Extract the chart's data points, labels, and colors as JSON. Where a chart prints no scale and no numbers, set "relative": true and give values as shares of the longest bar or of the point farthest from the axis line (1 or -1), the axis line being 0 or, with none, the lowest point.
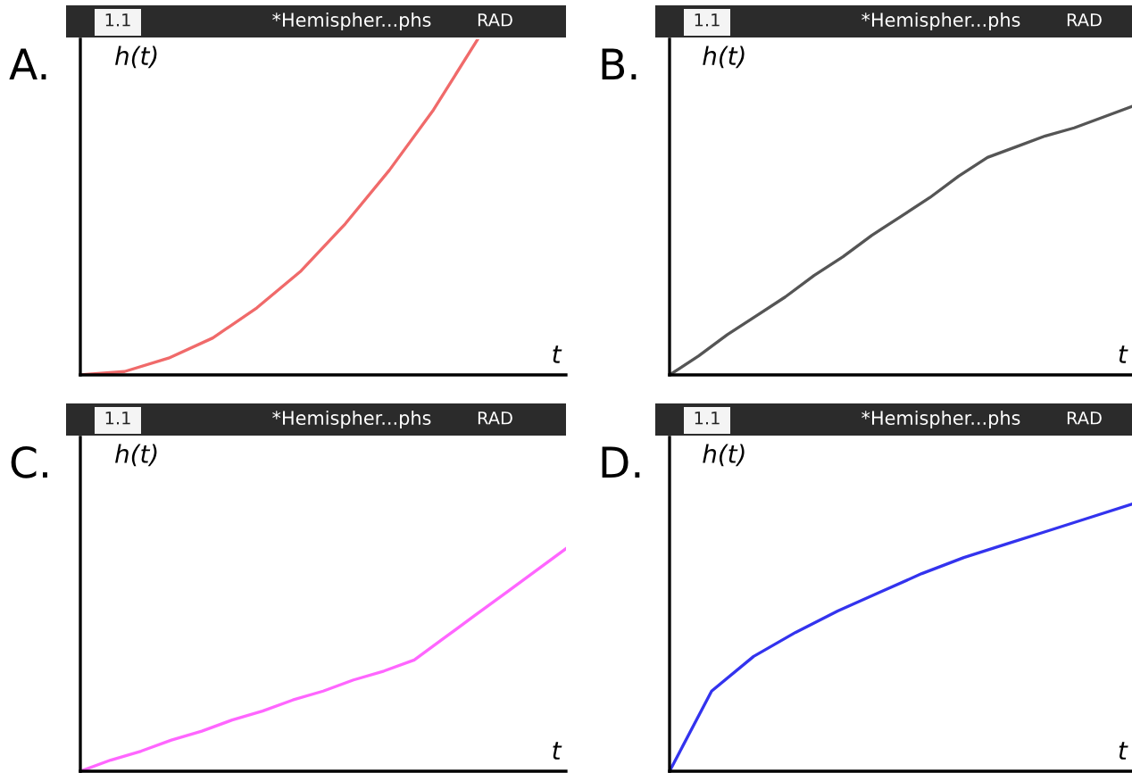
{
  "chart_data": [
    {
      "type": "line",
      "title": "A.",
      "xlabel": "t",
      "ylabel": "h(t)",
      "annotations": [
        "1.1",
        "*Hemispher...phs",
        "RAD"
      ],
      "relative": true,
      "categories": [
        null,
        null,
        null,
        null,
        null,
        null,
        null,
        null,
        null,
        null,
        null,
        null
      ],
      "series": [
        {
          "color": "#f06a6a",
          "values": [
            0,
            0.01,
            0.05,
            0.11,
            0.2,
            0.31,
            0.45,
            0.61,
            0.79,
            1.0,
            null,
            null
          ]
        }
      ]
    },
    {
      "type": "line",
      "title": "B.",
      "xlabel": "t",
      "ylabel": "h(t)",
      "annotations": [
        "1.1",
        "*Hemispher...phs",
        "RAD"
      ],
      "relative": true,
      "categories": [
        null,
        null,
        null,
        null,
        null,
        null,
        null,
        null,
        null,
        null,
        null,
        null,
        null,
        null,
        null,
        null,
        null
      ],
      "series": [
        {
          "color": "#555555",
          "values": [
            0,
            0.07,
            0.15,
            0.22,
            0.29,
            0.37,
            0.44,
            0.52,
            0.59,
            0.66,
            0.74,
            0.81,
            0.85,
            0.89,
            0.92,
            0.96,
            1.0
          ]
        }
      ]
    },
    {
      "type": "line",
      "title": "C.",
      "xlabel": "t",
      "ylabel": "h(t)",
      "annotations": [
        "1.1",
        "*Hemispher...phs",
        "RAD"
      ],
      "relative": true,
      "categories": [
        null,
        null,
        null,
        null,
        null,
        null,
        null,
        null,
        null,
        null,
        null,
        null,
        null,
        null,
        null,
        null,
        null
      ],
      "series": [
        {
          "color": "#ff66ff",
          "values": [
            0,
            0.05,
            0.09,
            0.14,
            0.18,
            0.23,
            0.27,
            0.32,
            0.36,
            0.41,
            0.45,
            0.5,
            0.6,
            0.7,
            0.8,
            0.9,
            1.0
          ]
        }
      ]
    },
    {
      "type": "line",
      "title": "D.",
      "xlabel": "t",
      "ylabel": "h(t)",
      "annotations": [
        "1.1",
        "*Hemispher...phs",
        "RAD"
      ],
      "relative": true,
      "categories": [
        null,
        null,
        null,
        null,
        null,
        null,
        null,
        null,
        null,
        null,
        null,
        null
      ],
      "series": [
        {
          "color": "#3333ee",
          "values": [
            0,
            0.3,
            0.43,
            0.52,
            0.6,
            0.67,
            0.74,
            0.8,
            0.85,
            0.9,
            0.95,
            1.0
          ]
        }
      ]
    }
  ]
}
